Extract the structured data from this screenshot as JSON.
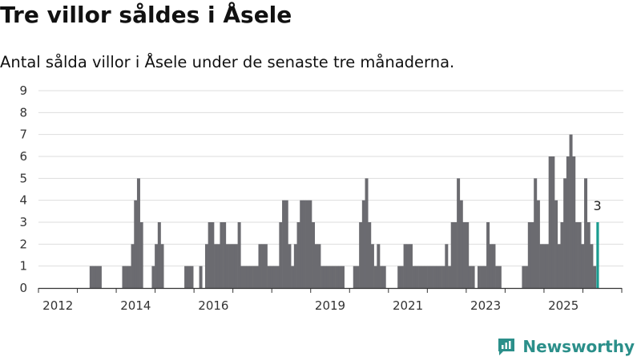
{
  "header": {
    "title": "Tre villor såldes i Åsele",
    "subtitle": "Antal sålda villor i Åsele under de senaste tre månaderna."
  },
  "brand": {
    "name": "Newsworthy",
    "icon": "newsworthy-logo-icon",
    "color": "#2b8f8a"
  },
  "chart_data": {
    "type": "bar",
    "x_label_ticks": [
      "2012",
      "2014",
      "2016",
      "2019",
      "2021",
      "2023",
      "2025"
    ],
    "y_ticks": [
      "0",
      "1",
      "2",
      "3",
      "4",
      "5",
      "6",
      "7",
      "8",
      "9"
    ],
    "ylim": [
      0,
      9
    ],
    "grid": true,
    "values": [
      0,
      0,
      0,
      0,
      0,
      0,
      0,
      0,
      0,
      0,
      0,
      0,
      0,
      0,
      0,
      0,
      0,
      1,
      1,
      1,
      1,
      0,
      0,
      0,
      0,
      0,
      0,
      0,
      1,
      1,
      1,
      2,
      4,
      5,
      3,
      0,
      0,
      0,
      1,
      2,
      3,
      2,
      0,
      0,
      0,
      0,
      0,
      0,
      0,
      1,
      1,
      1,
      0,
      0,
      1,
      0,
      2,
      3,
      3,
      2,
      2,
      3,
      3,
      2,
      2,
      2,
      2,
      3,
      1,
      1,
      1,
      1,
      1,
      1,
      2,
      2,
      2,
      1,
      1,
      1,
      1,
      3,
      4,
      4,
      2,
      1,
      2,
      3,
      4,
      4,
      4,
      4,
      3,
      2,
      2,
      1,
      1,
      1,
      1,
      1,
      1,
      1,
      1,
      0,
      0,
      0,
      1,
      1,
      3,
      4,
      5,
      3,
      2,
      1,
      2,
      1,
      1,
      0,
      0,
      0,
      0,
      1,
      1,
      2,
      2,
      2,
      1,
      1,
      1,
      1,
      1,
      1,
      1,
      1,
      1,
      1,
      1,
      2,
      1,
      3,
      3,
      5,
      4,
      3,
      3,
      1,
      1,
      0,
      1,
      1,
      1,
      3,
      2,
      2,
      1,
      1,
      0,
      0,
      0,
      0,
      0,
      0,
      0,
      1,
      1,
      3,
      3,
      5,
      4,
      2,
      2,
      2,
      6,
      6,
      4,
      2,
      3,
      5,
      6,
      7,
      6,
      3,
      3,
      2,
      5,
      3,
      2,
      1,
      3
    ],
    "highlight": {
      "last_value": 3,
      "label": "3",
      "color": "#1a9c8f"
    },
    "bar_color": "#6b6b70",
    "grid_color": "#dddddd"
  }
}
